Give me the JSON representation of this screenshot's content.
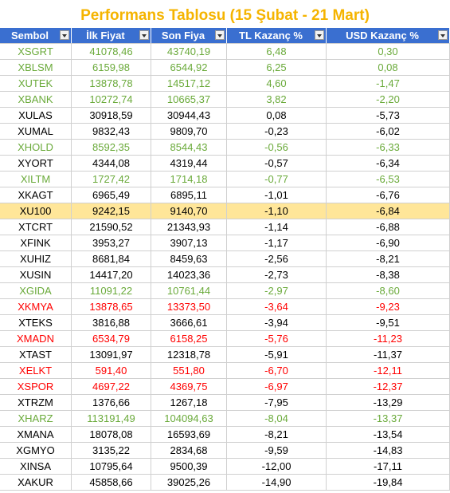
{
  "table": {
    "title": "Performans Tablosu (15 Şubat - 21 Mart)",
    "headers": [
      "Sembol",
      "İlk Fiyat",
      "Son Fiya",
      "TL Kazanç %",
      "USD Kazanç %"
    ],
    "rows": [
      {
        "cells": [
          "XSGRT",
          "41078,46",
          "43740,19",
          "6,48",
          "0,30"
        ],
        "color": "#6aaa3a"
      },
      {
        "cells": [
          "XBLSM",
          "6159,98",
          "6544,92",
          "6,25",
          "0,08"
        ],
        "color": "#6aaa3a"
      },
      {
        "cells": [
          "XUTEK",
          "13878,78",
          "14517,12",
          "4,60",
          "-1,47"
        ],
        "color": "#6aaa3a"
      },
      {
        "cells": [
          "XBANK",
          "10272,74",
          "10665,37",
          "3,82",
          "-2,20"
        ],
        "color": "#6aaa3a"
      },
      {
        "cells": [
          "XULAS",
          "30918,59",
          "30944,43",
          "0,08",
          "-5,73"
        ],
        "color": "#000000"
      },
      {
        "cells": [
          "XUMAL",
          "9832,43",
          "9809,70",
          "-0,23",
          "-6,02"
        ],
        "color": "#000000"
      },
      {
        "cells": [
          "XHOLD",
          "8592,35",
          "8544,43",
          "-0,56",
          "-6,33"
        ],
        "color": "#6aaa3a"
      },
      {
        "cells": [
          "XYORT",
          "4344,08",
          "4319,44",
          "-0,57",
          "-6,34"
        ],
        "color": "#000000"
      },
      {
        "cells": [
          "XILTM",
          "1727,42",
          "1714,18",
          "-0,77",
          "-6,53"
        ],
        "color": "#6aaa3a"
      },
      {
        "cells": [
          "XKAGT",
          "6965,49",
          "6895,11",
          "-1,01",
          "-6,76"
        ],
        "color": "#000000"
      },
      {
        "cells": [
          "XU100",
          "9242,15",
          "9140,70",
          "-1,10",
          "-6,84"
        ],
        "color": "#000000",
        "highlight": "#ffe699"
      },
      {
        "cells": [
          "XTCRT",
          "21590,52",
          "21343,93",
          "-1,14",
          "-6,88"
        ],
        "color": "#000000"
      },
      {
        "cells": [
          "XFINK",
          "3953,27",
          "3907,13",
          "-1,17",
          "-6,90"
        ],
        "color": "#000000"
      },
      {
        "cells": [
          "XUHIZ",
          "8681,84",
          "8459,63",
          "-2,56",
          "-8,21"
        ],
        "color": "#000000"
      },
      {
        "cells": [
          "XUSIN",
          "14417,20",
          "14023,36",
          "-2,73",
          "-8,38"
        ],
        "color": "#000000"
      },
      {
        "cells": [
          "XGIDA",
          "11091,22",
          "10761,44",
          "-2,97",
          "-8,60"
        ],
        "color": "#6aaa3a"
      },
      {
        "cells": [
          "XKMYA",
          "13878,65",
          "13373,50",
          "-3,64",
          "-9,23"
        ],
        "color": "#ff0000"
      },
      {
        "cells": [
          "XTEKS",
          "3816,88",
          "3666,61",
          "-3,94",
          "-9,51"
        ],
        "color": "#000000"
      },
      {
        "cells": [
          "XMADN",
          "6534,79",
          "6158,25",
          "-5,76",
          "-11,23"
        ],
        "color": "#ff0000"
      },
      {
        "cells": [
          "XTAST",
          "13091,97",
          "12318,78",
          "-5,91",
          "-11,37"
        ],
        "color": "#000000"
      },
      {
        "cells": [
          "XELKT",
          "591,40",
          "551,80",
          "-6,70",
          "-12,11"
        ],
        "color": "#ff0000"
      },
      {
        "cells": [
          "XSPOR",
          "4697,22",
          "4369,75",
          "-6,97",
          "-12,37"
        ],
        "color": "#ff0000"
      },
      {
        "cells": [
          "XTRZM",
          "1376,66",
          "1267,18",
          "-7,95",
          "-13,29"
        ],
        "color": "#000000"
      },
      {
        "cells": [
          "XHARZ",
          "113191,49",
          "104094,63",
          "-8,04",
          "-13,37"
        ],
        "color": "#6aaa3a"
      },
      {
        "cells": [
          "XMANA",
          "18078,08",
          "16593,69",
          "-8,21",
          "-13,54"
        ],
        "color": "#000000"
      },
      {
        "cells": [
          "XGMYO",
          "3135,22",
          "2834,68",
          "-9,59",
          "-14,83"
        ],
        "color": "#000000"
      },
      {
        "cells": [
          "XINSA",
          "10795,64",
          "9500,39",
          "-12,00",
          "-17,11"
        ],
        "color": "#000000"
      },
      {
        "cells": [
          "XAKUR",
          "45858,66",
          "39025,26",
          "-14,90",
          "-19,84"
        ],
        "color": "#000000"
      }
    ]
  }
}
